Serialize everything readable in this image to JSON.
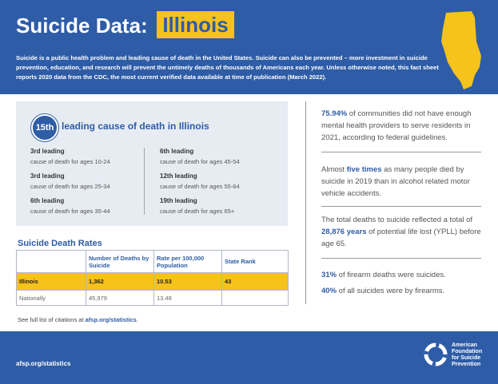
{
  "header": {
    "title": "Suicide Data:",
    "state": "Illinois",
    "intro": "Suicide is a public health problem and leading cause of death in the United States. Suicide can also be prevented – more investment in suicide prevention, education, and research will prevent the untimely deaths of thousands of Americans each year. Unless otherwise noted, this fact sheet reports 2020 data from the CDC, the most current verified data available at time of publication (March 2022)."
  },
  "leading": {
    "rank": "15th",
    "label": "leading cause of death in Illinois",
    "left": [
      {
        "rank": "3rd leading",
        "desc": "cause of death for ages 10-24"
      },
      {
        "rank": "3rd leading",
        "desc": "cause of death for ages 25-34"
      },
      {
        "rank": "6th leading",
        "desc": "cause of death for ages 35-44"
      }
    ],
    "right": [
      {
        "rank": "6th leading",
        "desc": "cause of death for ages 45-54"
      },
      {
        "rank": "12th leading",
        "desc": "cause of death for ages 55-64"
      },
      {
        "rank": "19th leading",
        "desc": "cause of death for ages 65+"
      }
    ]
  },
  "table": {
    "title": "Suicide Death Rates",
    "headers": [
      "Number of Deaths by Suicide",
      "Rate per 100,000 Population",
      "State Rank"
    ],
    "rows": [
      [
        "Illinois",
        "1,362",
        "10.53",
        "43"
      ],
      [
        "Nationally",
        "45,979",
        "13.48"
      ]
    ]
  },
  "citation": {
    "text": "See full list of citations at ",
    "link": "afsp.org/statistics",
    "end": "."
  },
  "stats": [
    {
      "highlight": "75.94%",
      "after": " of communities did not have enough mental health providers to serve residents in 2021, according to federal guidelines."
    },
    {
      "before": "Almost ",
      "highlight": "five times",
      "after": " as many people died by suicide in 2019 than in alcohol related motor vehicle accidents."
    },
    {
      "before": "The total deaths to suicide reflected a total of ",
      "highlight": "28,876 years",
      "after": " of potential life lost (YPLL) before age 65."
    },
    {
      "highlight": "31%",
      "after": " of firearm deaths were suicides."
    },
    {
      "highlight": "40%",
      "after": " of all suicides were by firearms."
    }
  ],
  "footer": {
    "url": "afsp.org/statistics",
    "logo": [
      "American",
      "Foundation",
      "for Suicide",
      "Prevention"
    ]
  }
}
